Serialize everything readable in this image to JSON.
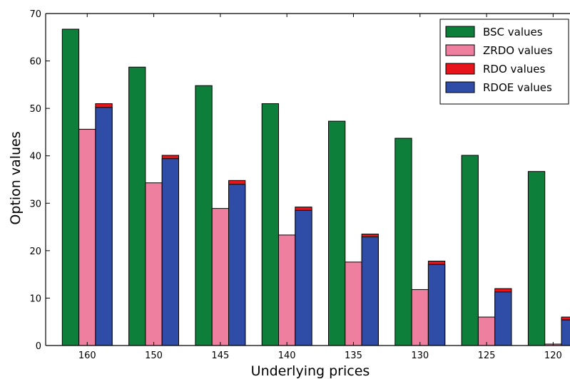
{
  "chart_data": {
    "type": "bar",
    "title": "",
    "xlabel": "Underlying prices",
    "ylabel": "Option values",
    "categories": [
      "160",
      "150",
      "145",
      "140",
      "135",
      "130",
      "125",
      "120"
    ],
    "ylim": [
      0,
      70
    ],
    "yticks": [
      0,
      10,
      20,
      30,
      40,
      50,
      60,
      70
    ],
    "grid": false,
    "legend_position": "top-right",
    "series": [
      {
        "name": "BSC values",
        "color": "#0e7f3a",
        "values": [
          66.7,
          58.7,
          54.8,
          51.0,
          47.3,
          43.7,
          40.1,
          36.7
        ]
      },
      {
        "name": "ZRDO values",
        "color": "#ef7f9f",
        "values": [
          45.6,
          34.3,
          28.9,
          23.3,
          17.6,
          11.8,
          6.0,
          0.3
        ]
      },
      {
        "name": "RDO values",
        "color": "#e8141c",
        "values": [
          51.0,
          40.1,
          34.8,
          29.2,
          23.5,
          17.8,
          12.0,
          6.0
        ]
      },
      {
        "name": "RDOE values",
        "color": "#2f4ca6",
        "values": [
          50.2,
          39.4,
          34.0,
          28.5,
          22.9,
          17.1,
          11.3,
          5.4
        ]
      }
    ],
    "overlay_note_series": [
      "RDO values",
      "RDOE values"
    ]
  }
}
